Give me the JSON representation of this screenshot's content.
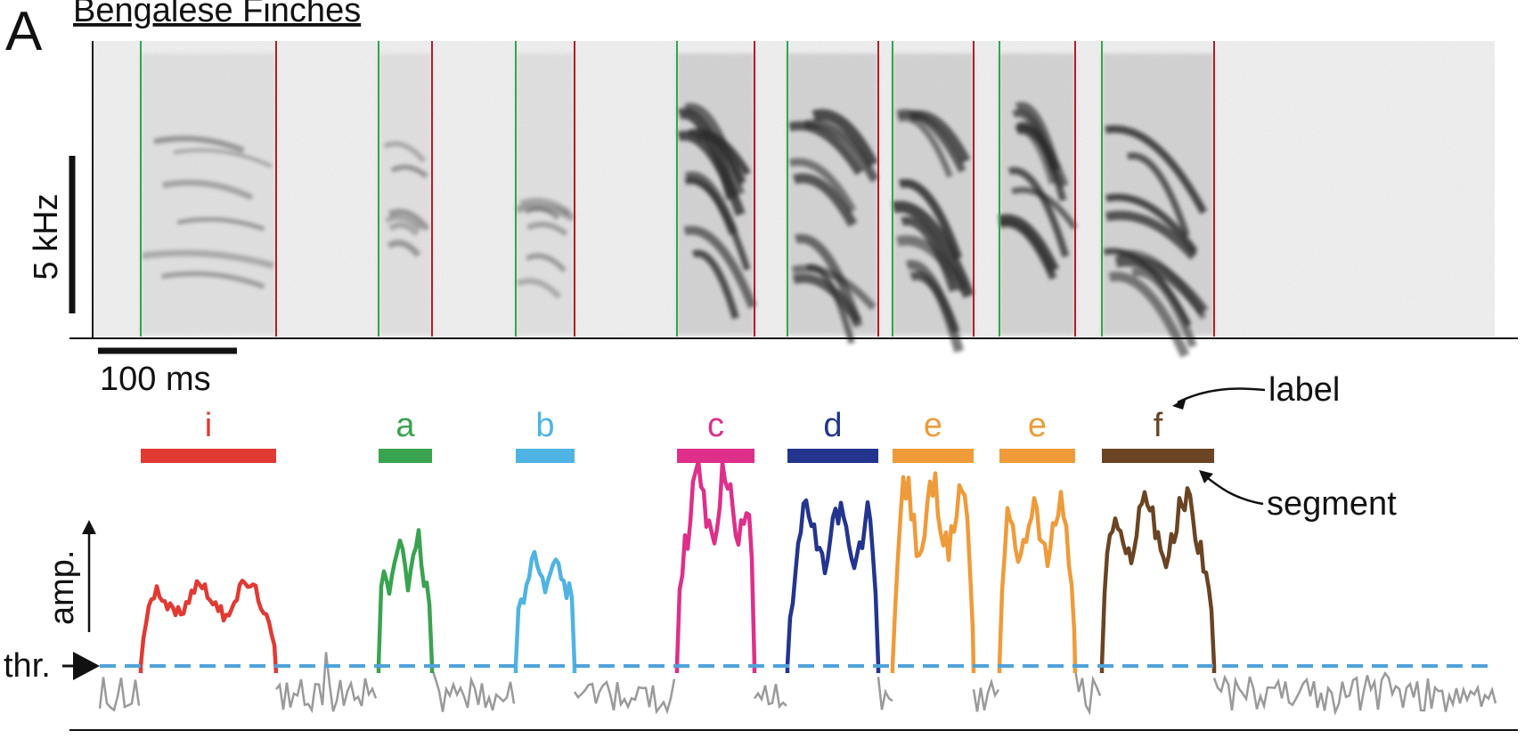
{
  "panel_letter": "A",
  "title": "Bengalese Finches",
  "spectrogram": {
    "freq_scale_label": "5 kHz",
    "time_scale_label": "100 ms"
  },
  "syllables": [
    {
      "label": "i",
      "color": "#e03a33"
    },
    {
      "label": "a",
      "color": "#3aa34f"
    },
    {
      "label": "b",
      "color": "#4fb3e3"
    },
    {
      "label": "c",
      "color": "#de2f8a"
    },
    {
      "label": "d",
      "color": "#23358f"
    },
    {
      "label": "e",
      "color": "#ef9b3a"
    },
    {
      "label": "e",
      "color": "#ef9b3a"
    },
    {
      "label": "f",
      "color": "#6b4423"
    }
  ],
  "annotations": {
    "label_callout": "label",
    "segment_callout": "segment"
  },
  "amplitude": {
    "axis_label": "amp.",
    "threshold_label": "thr.",
    "threshold_color": "#4fa3db",
    "below_threshold_color": "#9a9a9a"
  },
  "colors": {
    "onset_line": "#2ea84a",
    "offset_line": "#b01f24"
  }
}
